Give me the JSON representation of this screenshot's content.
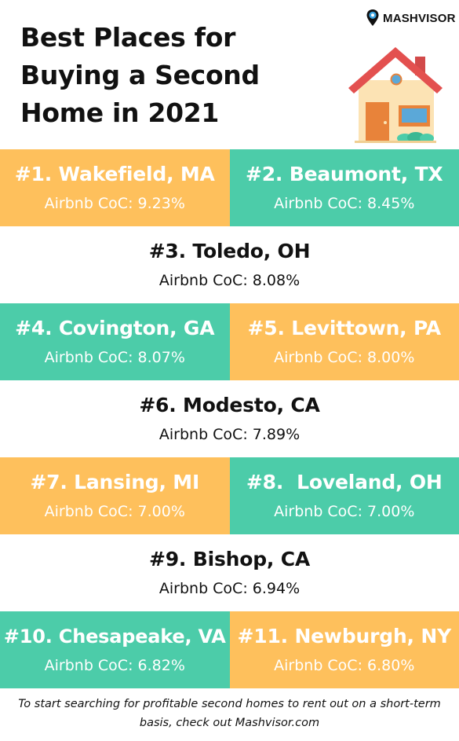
{
  "header": {
    "title": "Best Places for Buying a Second Home in 2021",
    "logo_text": "MASHVISOR",
    "logo_icon": "location-pin-icon",
    "illustration": "house-icon"
  },
  "colors": {
    "orange": "#fec05c",
    "teal": "#4ccca9",
    "white": "#ffffff"
  },
  "places": [
    {
      "rank_city": "#1. Wakefield, MA",
      "coc": "Airbnb CoC: 9.23%"
    },
    {
      "rank_city": "#2. Beaumont, TX",
      "coc": "Airbnb CoC: 8.45%"
    },
    {
      "rank_city": "#3. Toledo, OH",
      "coc": "Airbnb CoC: 8.08%"
    },
    {
      "rank_city": "#4. Covington, GA",
      "coc": "Airbnb CoC: 8.07%"
    },
    {
      "rank_city": "#5. Levittown, PA",
      "coc": "Airbnb CoC: 8.00%"
    },
    {
      "rank_city": "#6. Modesto, CA",
      "coc": "Airbnb CoC: 7.89%"
    },
    {
      "rank_city": "#7. Lansing, MI",
      "coc": "Airbnb CoC: 7.00%"
    },
    {
      "rank_city": "#8.  Loveland, OH",
      "coc": "Airbnb CoC: 7.00%"
    },
    {
      "rank_city": "#9. Bishop, CA",
      "coc": "Airbnb CoC: 6.94%"
    },
    {
      "rank_city": "#10. Chesapeake, VA",
      "coc": "Airbnb CoC: 6.82%"
    },
    {
      "rank_city": "#11. Newburgh, NY",
      "coc": "Airbnb CoC: 6.80%"
    }
  ],
  "footer": {
    "text": "To start searching for profitable second homes to rent out on a short-term basis, check out Mashvisor.com"
  }
}
